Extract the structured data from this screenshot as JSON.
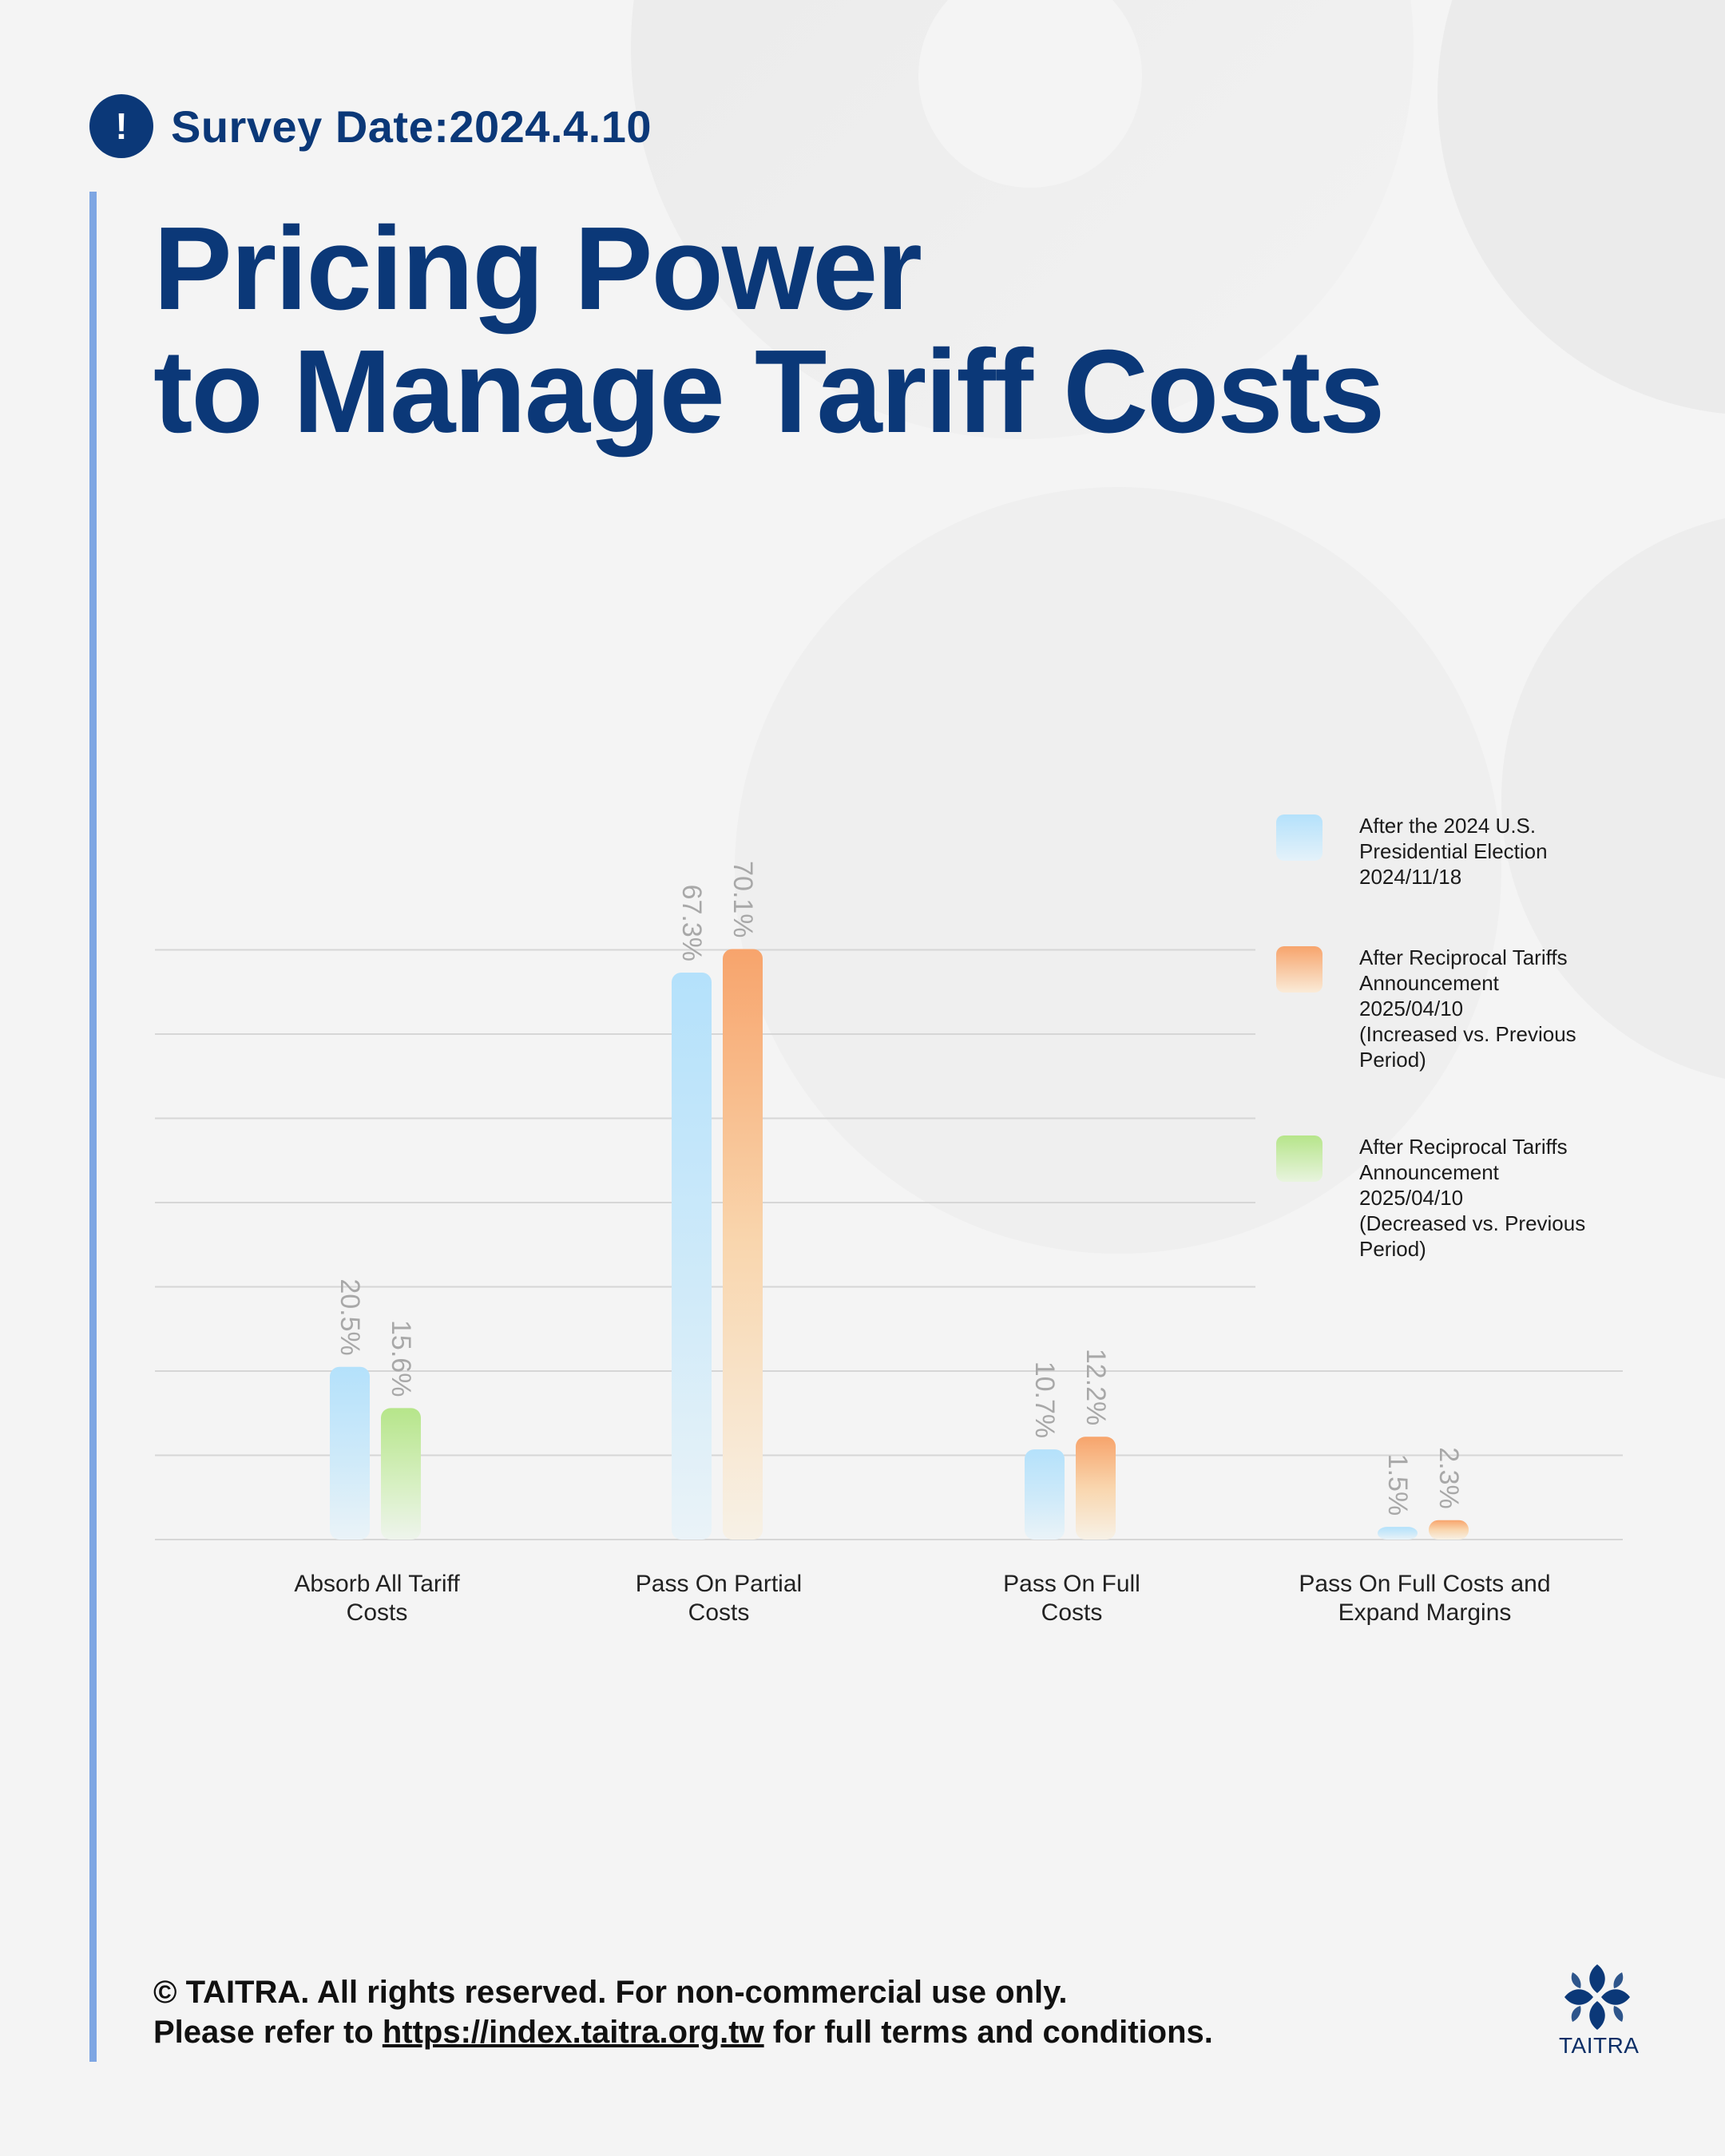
{
  "header": {
    "alert_icon": "exclamation-circle-icon",
    "survey_label": "Survey Date:2024.4.10",
    "title_line1": "Pricing Power",
    "title_line2": "to Manage Tariff Costs"
  },
  "colors": {
    "navy": "#0b3878",
    "accent_line": "#7ea6e3",
    "series_blue": "#b4e1fb",
    "series_orange": "#f7a46c",
    "series_green": "#b6e58a",
    "value_label": "#a8a8a8"
  },
  "chart_data": {
    "type": "bar",
    "categories": [
      [
        "Absorb All Tariff",
        "Costs"
      ],
      [
        "Pass On Partial",
        "Costs"
      ],
      [
        "Pass On Full",
        "Costs"
      ],
      [
        "Pass On Full Costs and",
        "Expand Margins"
      ]
    ],
    "series": [
      {
        "name": "After the 2024 U.S. Presidential Election 2024/11/18",
        "color": "blue",
        "values": [
          20.5,
          67.3,
          10.7,
          1.5
        ],
        "labels": [
          "20.5%",
          "67.3%",
          "10.7%",
          "1.5%"
        ]
      },
      {
        "name": "After Reciprocal Tariffs Announcement 2025/04/10",
        "colors": [
          "green",
          "orange",
          "orange",
          "orange"
        ],
        "values": [
          15.6,
          70.1,
          12.2,
          2.3
        ],
        "labels": [
          "15.6%",
          "70.1%",
          "12.2%",
          "2.3%"
        ]
      }
    ],
    "ylim": [
      0,
      70
    ],
    "grid": true,
    "legend_position": "right"
  },
  "legend": [
    {
      "swatch": "blue",
      "lines": [
        "After the 2024 U.S.",
        "Presidential Election",
        "2024/11/18"
      ]
    },
    {
      "swatch": "orange",
      "lines": [
        "After Reciprocal Tariffs",
        "Announcement",
        "2025/04/10",
        "(Increased vs. Previous",
        "Period)"
      ]
    },
    {
      "swatch": "green",
      "lines": [
        "After Reciprocal Tariffs",
        "Announcement",
        "2025/04/10",
        "(Decreased vs. Previous",
        "Period)"
      ]
    }
  ],
  "footer": {
    "line1": "© TAITRA. All rights reserved. For non-commercial use only.",
    "line2_pre": "Please refer to ",
    "line2_link": "https://index.taitra.org.tw",
    "line2_post": " for full terms and conditions."
  },
  "logo": {
    "text": "TAITRA",
    "icon": "taitra-logo-icon"
  }
}
